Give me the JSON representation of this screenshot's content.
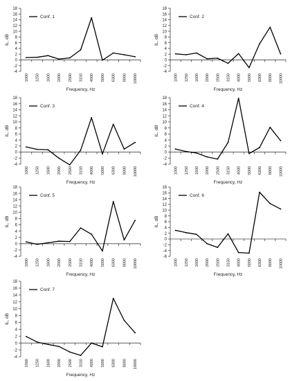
{
  "chart_data": [
    {
      "type": "line",
      "categories": [
        "1000",
        "1250",
        "1600",
        "2000",
        "2500",
        "3150",
        "4000",
        "5000",
        "6300",
        "8000",
        "10000"
      ],
      "series": [
        {
          "name": "Conf. 1",
          "values": [
            0.8,
            0.9,
            1.5,
            0.3,
            0.7,
            3.5,
            14.7,
            -0.1,
            2.4,
            1.8,
            1.1
          ]
        }
      ],
      "ylim": [
        -4,
        18
      ],
      "yticks": [
        -4,
        -2,
        0,
        2,
        4,
        6,
        8,
        10,
        12,
        14,
        16,
        18
      ],
      "xlabel": "Frequency, Hz",
      "ylabel": "IL, dB",
      "legend": "top-left",
      "grid": false
    },
    {
      "type": "line",
      "categories": [
        "1000",
        "1250",
        "1600",
        "2000",
        "2500",
        "3150",
        "4000",
        "5000",
        "6300",
        "8000",
        "10000"
      ],
      "series": [
        {
          "name": "Conf. 2",
          "values": [
            2.1,
            1.8,
            2.4,
            0.4,
            0.6,
            -1.2,
            2.2,
            -2.7,
            5.6,
            11.4,
            2.1
          ]
        }
      ],
      "ylim": [
        -4,
        18
      ],
      "yticks": [
        -4,
        -2,
        0,
        2,
        4,
        6,
        8,
        10,
        12,
        14,
        16,
        18
      ],
      "xlabel": "Frequency, Hz",
      "ylabel": "IL, dB",
      "legend": "top-left",
      "grid": false
    },
    {
      "type": "line",
      "categories": [
        "1000",
        "1250",
        "1600",
        "2000",
        "2500",
        "3150",
        "4000",
        "5000",
        "6300",
        "8000",
        "10000"
      ],
      "series": [
        {
          "name": "Conf. 3",
          "values": [
            1.7,
            0.9,
            0.8,
            -2.0,
            -4.2,
            0.6,
            11.4,
            -0.6,
            9.2,
            1.0,
            3.2
          ]
        }
      ],
      "ylim": [
        -4,
        18
      ],
      "yticks": [
        -4,
        -2,
        0,
        2,
        4,
        6,
        8,
        10,
        12,
        14,
        16,
        18
      ],
      "xlabel": "Frequency, Hz",
      "ylabel": "IL, dB",
      "legend": "top-left",
      "grid": false
    },
    {
      "type": "line",
      "categories": [
        "1000",
        "1250",
        "1600",
        "2000",
        "2500",
        "3150",
        "4000",
        "5000",
        "6300",
        "8000",
        "10000"
      ],
      "series": [
        {
          "name": "Conf. 4",
          "values": [
            1.0,
            0.2,
            -0.3,
            -1.6,
            -2.3,
            3.2,
            17.8,
            -0.5,
            1.5,
            8.2,
            3.8
          ]
        }
      ],
      "ylim": [
        -4,
        18
      ],
      "yticks": [
        -4,
        -2,
        0,
        2,
        4,
        6,
        8,
        10,
        12,
        14,
        16,
        18
      ],
      "xlabel": "Frequency, Hz",
      "ylabel": "IL, dB",
      "legend": "top-left",
      "grid": false
    },
    {
      "type": "line",
      "categories": [
        "1000",
        "1250",
        "1600",
        "2000",
        "2500",
        "3150",
        "4000",
        "5000",
        "6300",
        "8000",
        "10000"
      ],
      "series": [
        {
          "name": "Conf. 5",
          "values": [
            0.6,
            -0.2,
            0.3,
            0.8,
            0.7,
            5.0,
            3.0,
            -2.3,
            13.4,
            1.2,
            7.4
          ]
        }
      ],
      "ylim": [
        -4,
        18
      ],
      "yticks": [
        -4,
        -2,
        0,
        2,
        4,
        6,
        8,
        10,
        12,
        14,
        16,
        18
      ],
      "xlabel": "Frequency, Hz",
      "ylabel": "IL, dB",
      "legend": "top-left",
      "grid": false
    },
    {
      "type": "line",
      "categories": [
        "1000",
        "1250",
        "1600",
        "2000",
        "2500",
        "3150",
        "4000",
        "5000",
        "6300",
        "8000",
        "10000"
      ],
      "series": [
        {
          "name": "Conf. 6",
          "values": [
            3.0,
            2.2,
            1.6,
            -1.6,
            -2.9,
            1.8,
            -4.7,
            -4.9,
            16.2,
            12.3,
            10.4
          ]
        }
      ],
      "ylim": [
        -6,
        18
      ],
      "yticks": [
        -6,
        -4,
        -2,
        0,
        2,
        4,
        6,
        8,
        10,
        12,
        14,
        16,
        18
      ],
      "xlabel": "Frequency, Hz",
      "ylabel": "IL, dB",
      "legend": "top-left",
      "grid": false
    },
    {
      "type": "line",
      "categories": [
        "1000",
        "1250",
        "1600",
        "2000",
        "2500",
        "3150",
        "4000",
        "5000",
        "6300",
        "8000",
        "10000"
      ],
      "series": [
        {
          "name": "Conf. 7",
          "values": [
            1.9,
            0.3,
            -0.4,
            -1.0,
            -2.6,
            -3.6,
            0.0,
            -1.1,
            13.0,
            6.6,
            3.0
          ]
        }
      ],
      "ylim": [
        -4,
        18
      ],
      "yticks": [
        -4,
        -2,
        0,
        2,
        4,
        6,
        8,
        10,
        12,
        14,
        16,
        18
      ],
      "xlabel": "Frequency, Hz",
      "ylabel": "IL, dB",
      "legend": "top-left",
      "grid": false
    }
  ]
}
